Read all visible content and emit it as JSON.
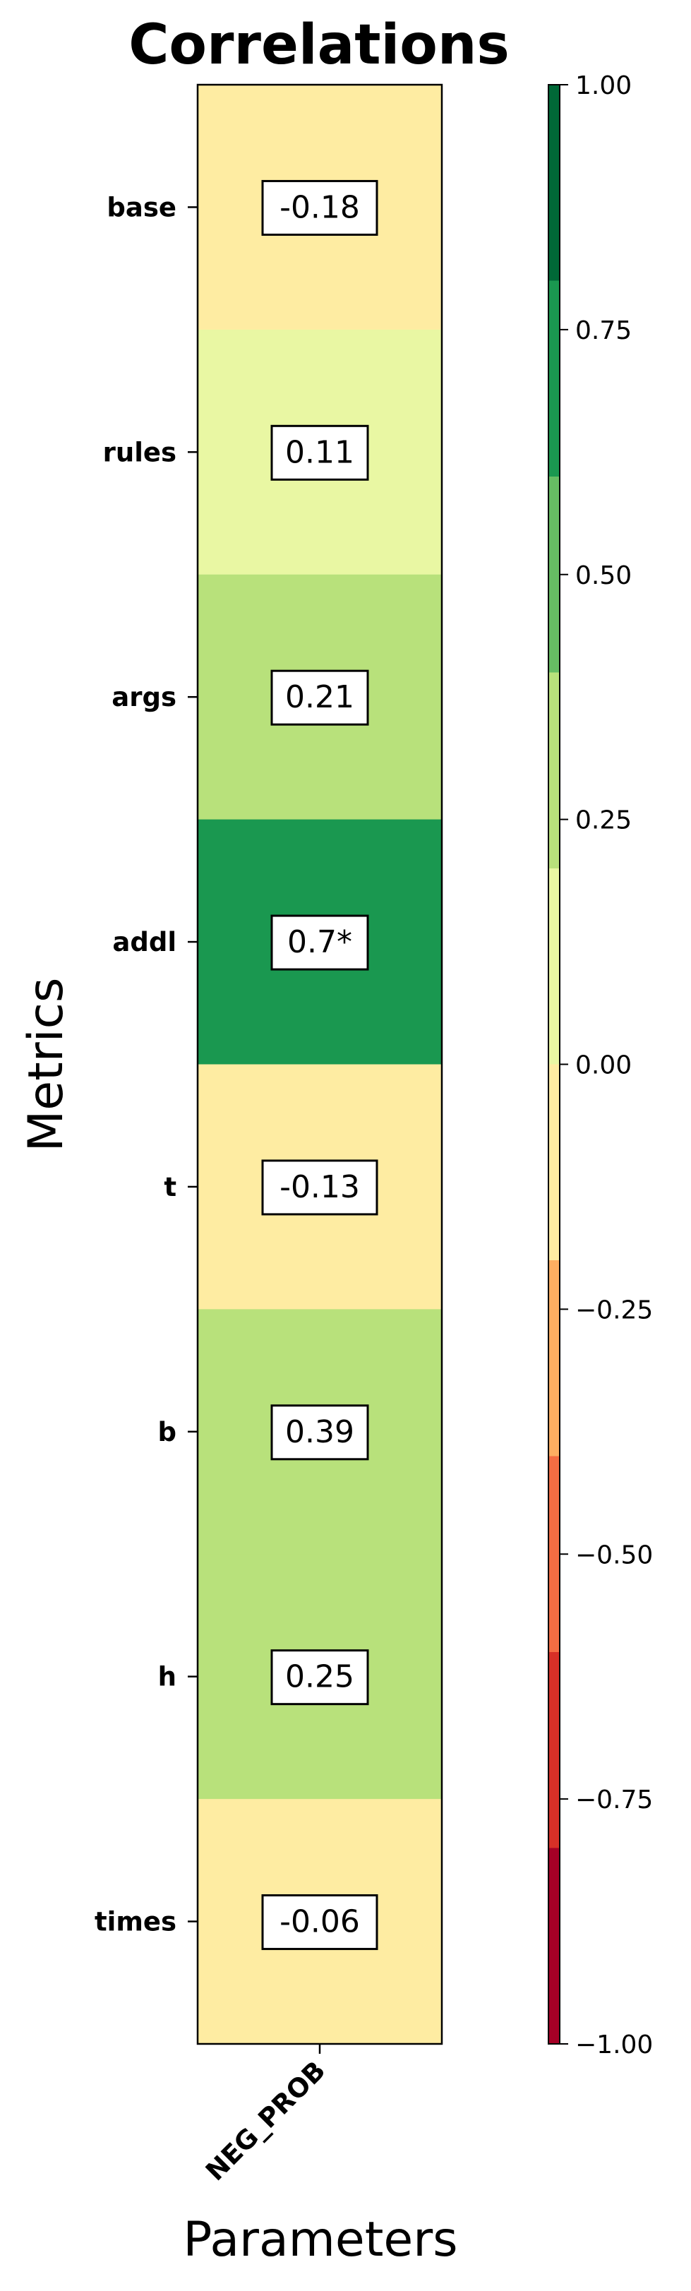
{
  "chart_data": {
    "type": "heatmap",
    "title": "Correlations",
    "xlabel": "Parameters",
    "ylabel": "Metrics",
    "columns": [
      "NEG_PROB"
    ],
    "rows": [
      "base",
      "rules",
      "args",
      "addl",
      "t",
      "b",
      "h",
      "times"
    ],
    "values": [
      -0.18,
      0.11,
      0.21,
      0.7,
      -0.13,
      0.39,
      0.25,
      -0.06
    ],
    "cell_labels": [
      "-0.18",
      "0.11",
      "0.21",
      "0.7*",
      "-0.13",
      "0.39",
      "0.25",
      "-0.06"
    ],
    "colorbar": {
      "range": [
        -1.0,
        1.0
      ],
      "ticks": [
        1.0,
        0.75,
        0.5,
        0.25,
        0.0,
        -0.25,
        -0.5,
        -0.75,
        -1.0
      ],
      "tick_labels": [
        "1.00",
        "0.75",
        "0.50",
        "0.25",
        "0.00",
        "−0.25",
        "−0.50",
        "−0.75",
        "−1.00"
      ],
      "bins": [
        {
          "from": 0.8,
          "to": 1.0,
          "color": "#006837"
        },
        {
          "from": 0.6,
          "to": 0.8,
          "color": "#1a9850"
        },
        {
          "from": 0.4,
          "to": 0.6,
          "color": "#66bd63"
        },
        {
          "from": 0.2,
          "to": 0.4,
          "color": "#b8e17b"
        },
        {
          "from": 0.0,
          "to": 0.2,
          "color": "#e9f7a3"
        },
        {
          "from": -0.2,
          "to": 0.0,
          "color": "#feeca2"
        },
        {
          "from": -0.4,
          "to": -0.2,
          "color": "#fdae61"
        },
        {
          "from": -0.6,
          "to": -0.4,
          "color": "#f46d43"
        },
        {
          "from": -0.8,
          "to": -0.6,
          "color": "#d73027"
        },
        {
          "from": -1.0,
          "to": -0.8,
          "color": "#a50026"
        }
      ]
    }
  }
}
